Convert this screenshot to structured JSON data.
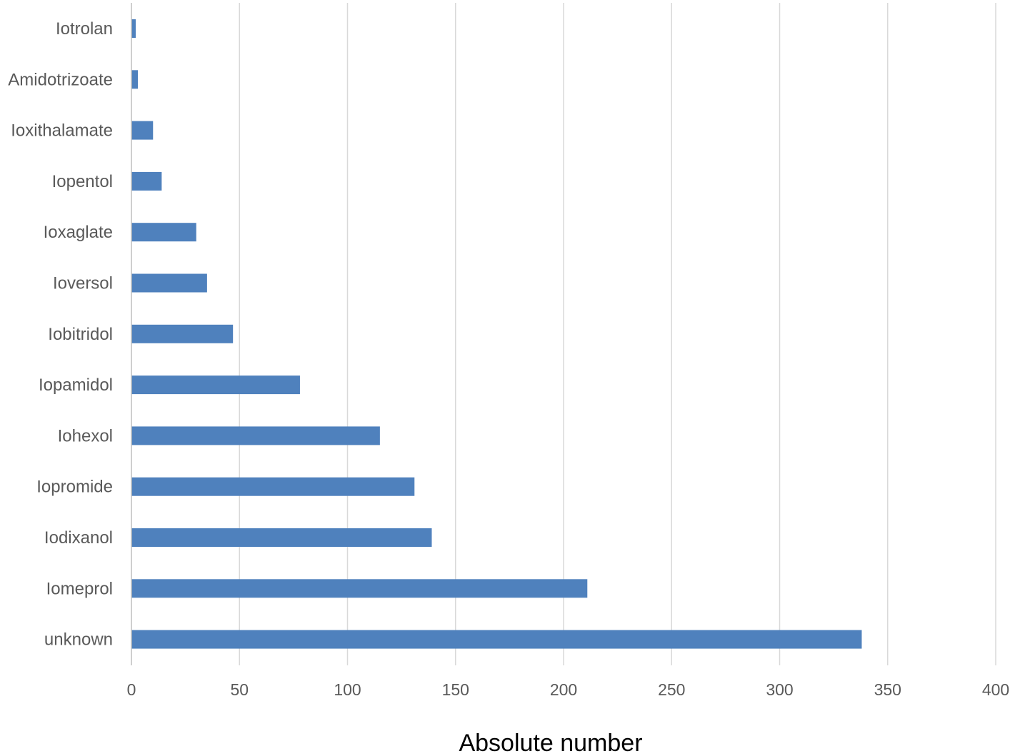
{
  "chart_data": {
    "type": "bar",
    "orientation": "horizontal",
    "title": "",
    "xlabel": "Absolute number",
    "ylabel": "",
    "xlim": [
      0,
      400
    ],
    "ticks": [
      "0",
      "50",
      "100",
      "150",
      "200",
      "250",
      "300",
      "350",
      "400"
    ],
    "grid": true,
    "legend": "none",
    "bar_color": "#4f81bd",
    "categories": [
      "Iotrolan",
      "Amidotrizoate",
      "Ioxithalamate",
      "Iopentol",
      "Ioxaglate",
      "Ioversol",
      "Iobitridol",
      "Iopamidol",
      "Iohexol",
      "Iopromide",
      "Iodixanol",
      "Iomeprol",
      "unknown"
    ],
    "values": [
      2,
      3,
      10,
      14,
      30,
      35,
      47,
      78,
      115,
      131,
      139,
      211,
      338
    ]
  }
}
